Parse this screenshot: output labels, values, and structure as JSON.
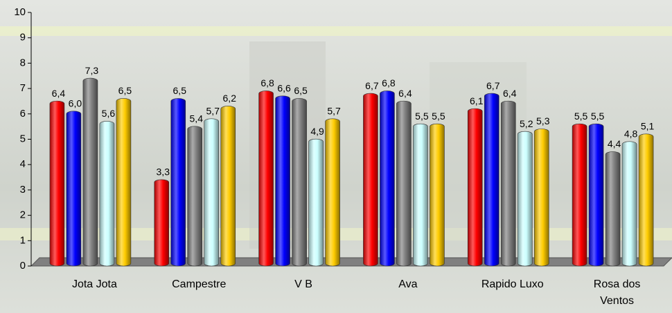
{
  "chart_data": {
    "type": "bar",
    "categories": [
      "Jota Jota",
      "Campestre",
      "V B",
      "Ava",
      "Rapido Luxo",
      "Rosa dos Ventos"
    ],
    "series": [
      {
        "color": "#ff0000",
        "values": [
          6.4,
          3.3,
          6.8,
          6.7,
          6.1,
          5.5
        ],
        "value_labels": [
          "6,4",
          "3,3",
          "6,8",
          "6,7",
          "6,1",
          "5,5"
        ]
      },
      {
        "color": "#0000ff",
        "values": [
          6.0,
          6.5,
          6.6,
          6.8,
          6.7,
          5.5
        ],
        "value_labels": [
          "6,0",
          "6,5",
          "6,6",
          "6,8",
          "6,7",
          "5,5"
        ]
      },
      {
        "color": "#808080",
        "values": [
          7.3,
          5.4,
          6.5,
          6.4,
          6.4,
          4.4
        ],
        "value_labels": [
          "7,3",
          "5,4",
          "6,5",
          "6,4",
          "6,4",
          "4,4"
        ]
      },
      {
        "color": "#ccffff",
        "values": [
          5.6,
          5.7,
          4.9,
          5.5,
          5.2,
          4.8
        ],
        "value_labels": [
          "5,6",
          "5,7",
          "4,9",
          "5,5",
          "5,2",
          "4,8"
        ]
      },
      {
        "color": "#ffcc00",
        "values": [
          6.5,
          6.2,
          5.7,
          5.5,
          5.3,
          5.1
        ],
        "value_labels": [
          "6,5",
          "6,2",
          "5,7",
          "5,5",
          "5,3",
          "5,1"
        ]
      }
    ],
    "ylim": [
      0,
      10
    ],
    "yticks": [
      0,
      1,
      2,
      3,
      4,
      5,
      6,
      7,
      8,
      9,
      10
    ]
  }
}
